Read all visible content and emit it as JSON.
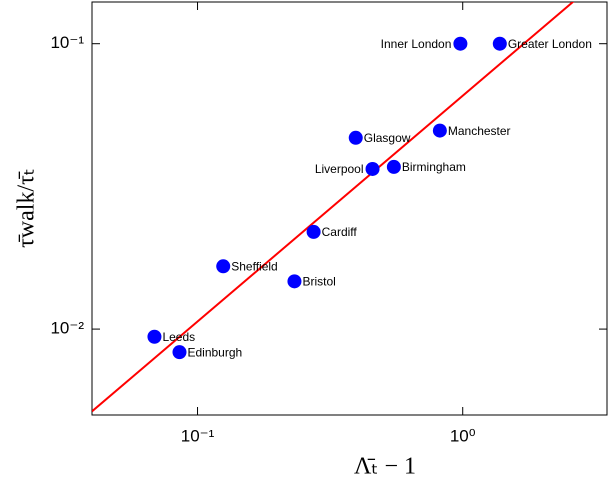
{
  "chart_data": {
    "type": "scatter",
    "xlabel": "Λ̄ₜ − 1",
    "ylabel": "τ̄walk/τ̄ₜ",
    "xscale": "log",
    "yscale": "log",
    "xlim": [
      0.04,
      3.5
    ],
    "ylim": [
      0.005,
      0.14
    ],
    "xticks": [
      {
        "value": 0.1,
        "label": "10⁻¹"
      },
      {
        "value": 1,
        "label": "10⁰"
      }
    ],
    "yticks": [
      {
        "value": 0.01,
        "label": "10⁻²"
      },
      {
        "value": 0.1,
        "label": "10⁻¹"
      }
    ],
    "series": [
      {
        "color": "#0000ff",
        "labels": [
          "Inner London",
          "Greater London",
          "Glasgow",
          "Manchester",
          "Liverpool",
          "Birmingham",
          "Cardiff",
          "Sheffield",
          "Bristol",
          "Leeds",
          "Edinburgh"
        ],
        "x": [
          0.98,
          1.38,
          0.395,
          0.82,
          0.457,
          0.55,
          0.274,
          0.125,
          0.232,
          0.0688,
          0.0855
        ],
        "values": [
          0.1,
          0.1,
          0.0468,
          0.0496,
          0.0364,
          0.037,
          0.0219,
          0.0166,
          0.0147,
          0.0094,
          0.0083
        ]
      }
    ],
    "fit_line": {
      "color": "#ff0000",
      "x": [
        0.04,
        2.72
      ],
      "values": [
        0.00515,
        0.145
      ]
    }
  }
}
